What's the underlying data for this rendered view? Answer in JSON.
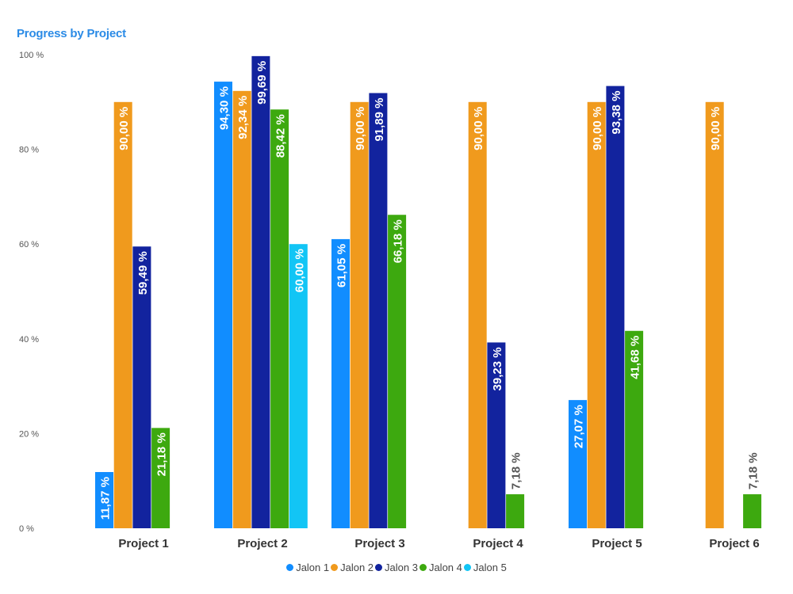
{
  "chart_data": {
    "type": "bar",
    "title": "Progress by Project",
    "xlabel": "",
    "ylabel": "",
    "ylim": [
      0,
      100
    ],
    "yticks": [
      "0 %",
      "20 %",
      "40 %",
      "60 %",
      "80 %",
      "100 %"
    ],
    "grid": false,
    "legend_position": "bottom-center",
    "categories": [
      "Project 1",
      "Project 2",
      "Project 3",
      "Project 4",
      "Project 5",
      "Project 6"
    ],
    "series": [
      {
        "name": "Jalon 1",
        "color": "#118dff",
        "values": [
          11.87,
          94.3,
          61.05,
          null,
          27.07,
          null
        ],
        "labels": [
          "11,87 %",
          "94,30 %",
          "61,05 %",
          "",
          "27,07 %",
          ""
        ]
      },
      {
        "name": "Jalon 2",
        "color": "#f09a1d",
        "values": [
          90.0,
          92.34,
          90.0,
          90.0,
          90.0,
          90.0
        ],
        "labels": [
          "90,00 %",
          "92,34 %",
          "90,00 %",
          "90,00 %",
          "90,00 %",
          "90,00 %"
        ]
      },
      {
        "name": "Jalon 3",
        "color": "#12239e",
        "values": [
          59.49,
          99.69,
          91.89,
          39.23,
          93.38,
          null
        ],
        "labels": [
          "59,49 %",
          "99,69 %",
          "91,89 %",
          "39,23 %",
          "93,38 %",
          ""
        ]
      },
      {
        "name": "Jalon 4",
        "color": "#3da90f",
        "values": [
          21.18,
          88.42,
          66.18,
          7.18,
          41.68,
          7.18
        ],
        "labels": [
          "21,18 %",
          "88,42 %",
          "66,18 %",
          "7,18 %",
          "41,68 %",
          "7,18 %"
        ]
      },
      {
        "name": "Jalon 5",
        "color": "#12c5f5",
        "values": [
          null,
          60.0,
          null,
          null,
          null,
          null
        ],
        "labels": [
          "",
          "60,00 %",
          "",
          "",
          "",
          ""
        ]
      }
    ]
  }
}
